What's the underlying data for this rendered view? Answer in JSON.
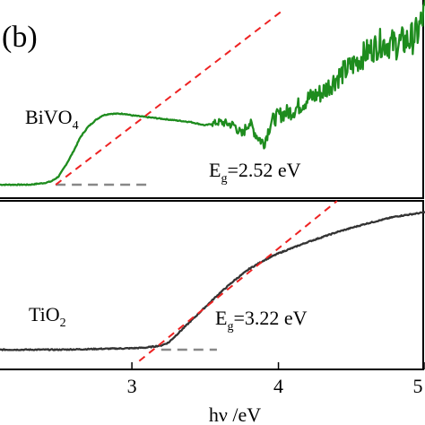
{
  "figure_label": "(b)",
  "chart_data": [
    {
      "type": "line",
      "panel": "top",
      "sample_label": {
        "base": "BiVO",
        "sub": "4"
      },
      "annotation": {
        "prefix": "E",
        "sub": "g",
        "rest": "=2.52 eV"
      },
      "xlim": [
        2.1,
        5.0
      ],
      "ylim": [
        0,
        1
      ],
      "grid": false,
      "series": [
        {
          "color": "#1e8c1e",
          "x": [
            2.1,
            2.2,
            2.3,
            2.4,
            2.45,
            2.5,
            2.55,
            2.6,
            2.65,
            2.7,
            2.75,
            2.8,
            2.85,
            2.9,
            2.95,
            3.0,
            3.1,
            3.2,
            3.3,
            3.4,
            3.5,
            3.6,
            3.7,
            3.75,
            3.8,
            3.85,
            3.9,
            3.95,
            4.0,
            4.1,
            4.2,
            4.3,
            4.4,
            4.5,
            4.6,
            4.7,
            4.8,
            4.9,
            4.95,
            5.0
          ],
          "y": [
            0.0,
            0.0,
            0.0,
            0.01,
            0.02,
            0.05,
            0.12,
            0.2,
            0.29,
            0.35,
            0.39,
            0.42,
            0.43,
            0.43,
            0.43,
            0.42,
            0.41,
            0.4,
            0.39,
            0.38,
            0.36,
            0.38,
            0.36,
            0.3,
            0.38,
            0.3,
            0.25,
            0.38,
            0.42,
            0.45,
            0.52,
            0.56,
            0.65,
            0.72,
            0.8,
            0.86,
            0.85,
            0.88,
            0.92,
            1.05
          ],
          "noise_from_x": 3.55
        }
      ],
      "tangent": {
        "color": "#ee2222",
        "x": [
          2.48,
          4.02
        ],
        "y": [
          0.0,
          1.05
        ]
      },
      "baseline": {
        "color": "#888888",
        "x": [
          2.48,
          3.1
        ],
        "y": [
          0.0,
          0.0
        ]
      }
    },
    {
      "type": "line",
      "panel": "bottom",
      "sample_label": {
        "base": "TiO",
        "sub": "2"
      },
      "annotation": {
        "prefix": "E",
        "sub": "g",
        "rest": "=3.22 eV"
      },
      "xlim": [
        2.1,
        5.0
      ],
      "ylim": [
        0,
        1
      ],
      "xlabel": "hν /eV",
      "xticks": [
        3,
        4,
        5
      ],
      "grid": false,
      "series": [
        {
          "color": "#333333",
          "x": [
            2.1,
            2.5,
            3.0,
            3.1,
            3.2,
            3.25,
            3.3,
            3.4,
            3.5,
            3.6,
            3.7,
            3.8,
            3.9,
            4.0,
            4.1,
            4.2,
            4.4,
            4.6,
            4.8,
            5.0
          ],
          "y": [
            0.0,
            0.0,
            0.01,
            0.015,
            0.03,
            0.05,
            0.1,
            0.2,
            0.3,
            0.4,
            0.49,
            0.57,
            0.63,
            0.68,
            0.72,
            0.76,
            0.83,
            0.89,
            0.94,
            0.97
          ],
          "noise_from_x": 2.1
        }
      ],
      "tangent": {
        "color": "#ee2222",
        "x": [
          3.05,
          4.4
        ],
        "y": [
          -0.08,
          1.05
        ]
      },
      "baseline": {
        "color": "#888888",
        "x": [
          3.2,
          3.58
        ],
        "y": [
          0.0,
          0.0
        ]
      }
    }
  ]
}
